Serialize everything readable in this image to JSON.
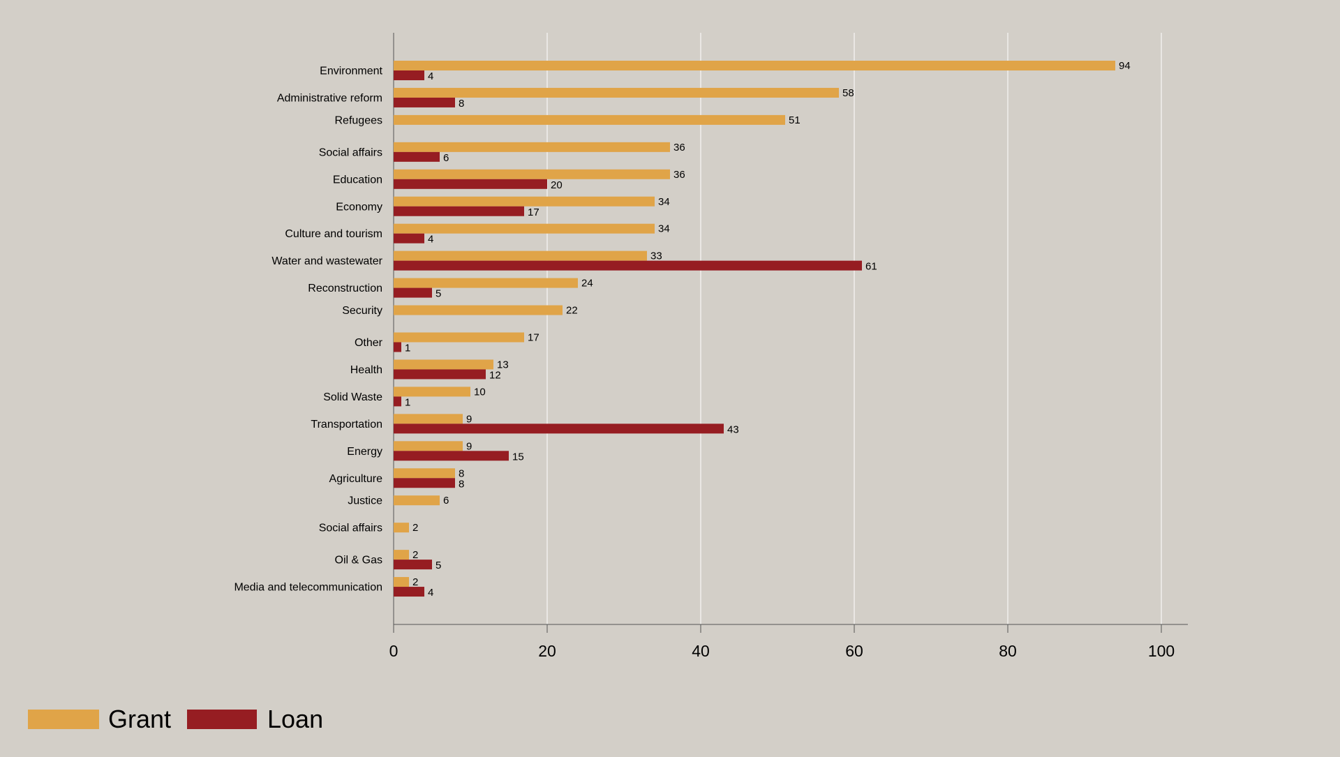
{
  "chart_data": {
    "type": "bar",
    "orientation": "horizontal",
    "categories": [
      "Environment",
      "Administrative reform",
      "Refugees",
      "Social affairs",
      "Education",
      "Economy",
      "Culture and tourism",
      "Water and wastewater",
      "Reconstruction",
      "Security",
      "Other",
      "Health",
      "Solid Waste",
      "Transportation",
      "Energy",
      "Agriculture",
      "Justice",
      "Social affairs",
      "Oil & Gas",
      "Media and telecommunication"
    ],
    "series": [
      {
        "name": "Grant",
        "color": "#e0a448",
        "values": [
          94,
          58,
          51,
          36,
          36,
          34,
          34,
          33,
          24,
          22,
          17,
          13,
          10,
          9,
          9,
          8,
          6,
          2,
          2,
          2
        ]
      },
      {
        "name": "Loan",
        "color": "#961d22",
        "values": [
          4,
          8,
          null,
          6,
          20,
          17,
          4,
          61,
          5,
          null,
          1,
          12,
          1,
          43,
          15,
          8,
          null,
          null,
          5,
          4
        ]
      }
    ],
    "xlim": [
      0,
      100
    ],
    "xticks": [
      0,
      20,
      40,
      60,
      80,
      100
    ],
    "grid": "vertical",
    "legend": "bottom-left",
    "title": "",
    "xlabel": "",
    "ylabel": ""
  }
}
